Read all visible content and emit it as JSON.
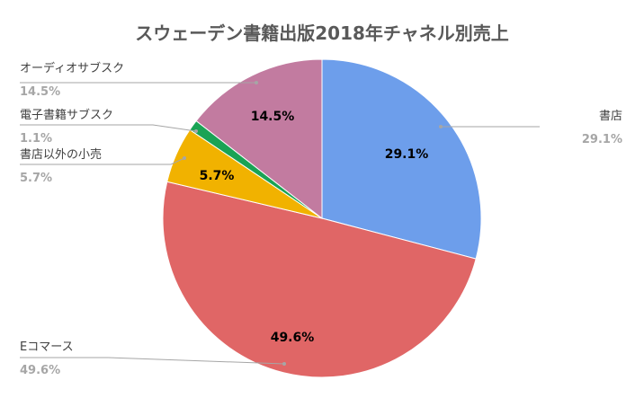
{
  "chart_data": {
    "type": "pie",
    "title": "スウェーデン書籍出版2018年チャネル別売上",
    "legend": "none",
    "slices": [
      {
        "label": "書店",
        "value": 29.1,
        "display": "29.1%",
        "color": "#6d9eeb"
      },
      {
        "label": "Eコマース",
        "value": 49.6,
        "display": "49.6%",
        "color": "#e06666"
      },
      {
        "label": "書店以外の小売",
        "value": 5.7,
        "display": "5.7%",
        "color": "#f1b200"
      },
      {
        "label": "電子書籍サブスク",
        "value": 1.1,
        "display": "1.1%",
        "color": "#1aa355"
      },
      {
        "label": "オーディオサブスク",
        "value": 14.5,
        "display": "14.5%",
        "color": "#c27ba0"
      }
    ]
  }
}
